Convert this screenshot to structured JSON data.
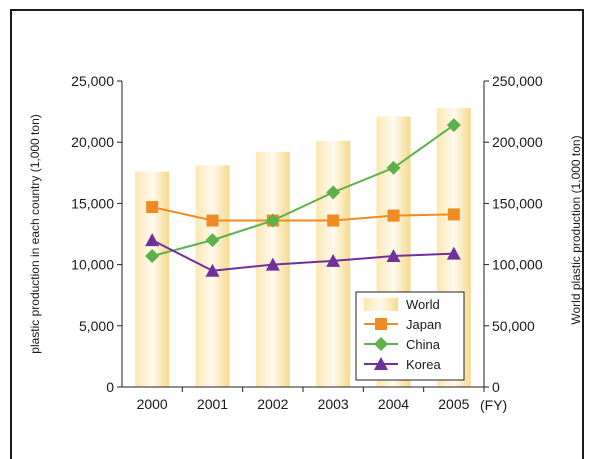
{
  "chart_data": {
    "type": "bar+line",
    "categories": [
      "2000",
      "2001",
      "2002",
      "2003",
      "2004",
      "2005"
    ],
    "x_unit_label": "(FY)",
    "ylabel_left": "plastic production in each country (1,000 ton)",
    "ylabel_right": "World plastic production (1,000 ton)",
    "ylim_left": [
      0,
      25000
    ],
    "ylim_right": [
      0,
      250000
    ],
    "yticks_left": [
      "25,000",
      "20,000",
      "15,000",
      "10,000",
      "5,000",
      "0"
    ],
    "yticks_right": [
      "250,000",
      "200,000",
      "150,000",
      "100,000",
      "50,000",
      "0"
    ],
    "bar_series": {
      "name": "World",
      "axis": "right",
      "color": "#f6dc8e",
      "values": [
        176000,
        181000,
        192000,
        201000,
        221000,
        228000
      ]
    },
    "series": [
      {
        "name": "Japan",
        "axis": "left",
        "marker": "square",
        "color": "#f08a22",
        "values": [
          14700,
          13600,
          13600,
          13600,
          14000,
          14100
        ]
      },
      {
        "name": "China",
        "axis": "left",
        "marker": "diamond",
        "color": "#5db14a",
        "values": [
          10700,
          12000,
          13600,
          15900,
          17900,
          21400
        ]
      },
      {
        "name": "Korea",
        "axis": "left",
        "marker": "triangle",
        "color": "#70309a",
        "values": [
          12000,
          9500,
          10000,
          10300,
          10700,
          10900
        ]
      }
    ],
    "legend_position": "bottom-right",
    "grid": false
  }
}
